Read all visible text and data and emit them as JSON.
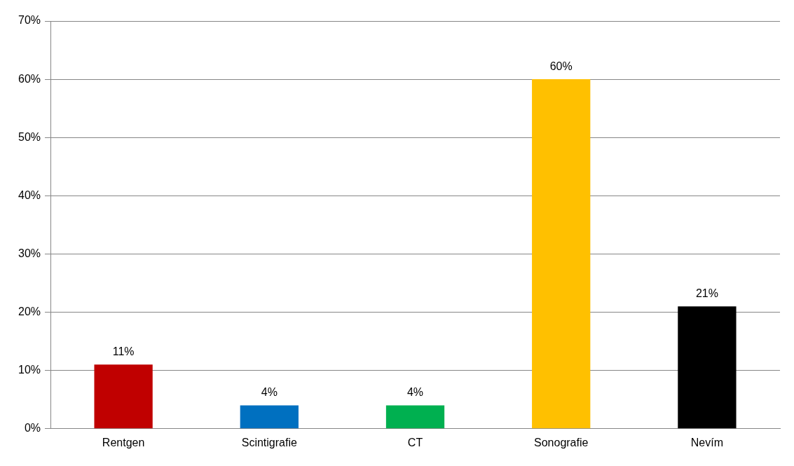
{
  "chart_data": {
    "type": "bar",
    "categories": [
      "Rentgen",
      "Scintigrafie",
      "CT",
      "Sonografie",
      "Nevím"
    ],
    "values": [
      11,
      4,
      4,
      60,
      21
    ],
    "colors": [
      "#c00000",
      "#0070c0",
      "#00b050",
      "#ffc000",
      "#000000"
    ],
    "value_labels": [
      "11%",
      "4%",
      "4%",
      "60%",
      "21%"
    ],
    "ylim": [
      0,
      70
    ],
    "yticks": [
      {
        "value": 0,
        "label": "0%"
      },
      {
        "value": 10,
        "label": "10%"
      },
      {
        "value": 20,
        "label": "20%"
      },
      {
        "value": 30,
        "label": "30%"
      },
      {
        "value": 40,
        "label": "40%"
      },
      {
        "value": 50,
        "label": "50%"
      },
      {
        "value": 60,
        "label": "60%"
      },
      {
        "value": 70,
        "label": "70%"
      }
    ],
    "grid": "y",
    "legend": false
  }
}
